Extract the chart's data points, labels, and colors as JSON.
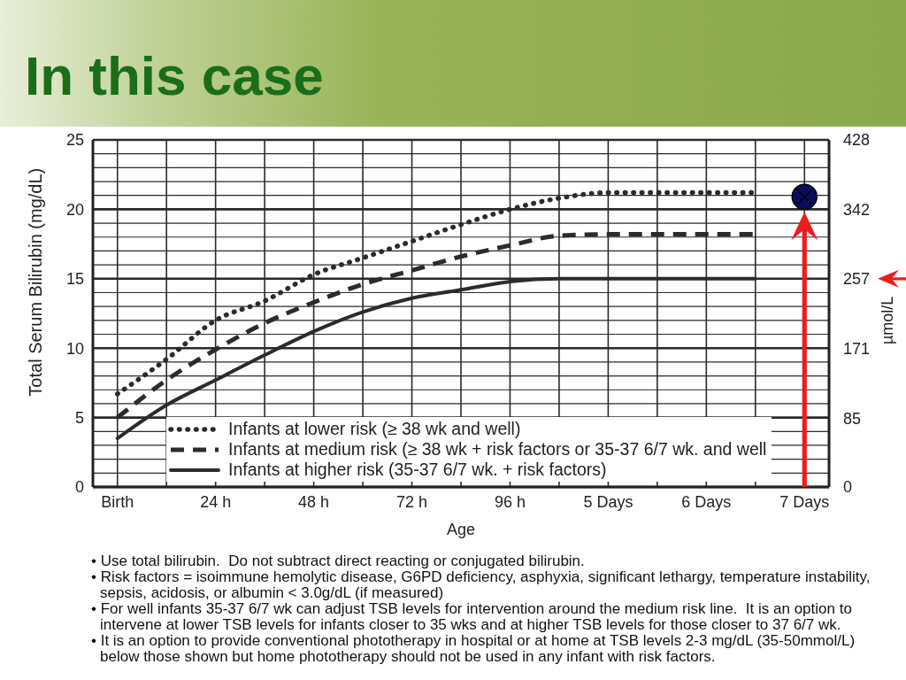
{
  "chart_data": {
    "type": "line",
    "title": "In this case",
    "xlabel": "Age",
    "ylabel": "Total Serum Bilirubin (mg/dL)",
    "y2label": "µmol/L",
    "categories": [
      "Birth",
      null,
      "24 h",
      null,
      "48 h",
      null,
      "72 h",
      null,
      "96 h",
      null,
      "5 Days",
      null,
      "6 Days",
      null,
      "7 Days"
    ],
    "ylim": [
      0,
      25
    ],
    "yticks": [
      0,
      {
        "value": 1,
        "label": null
      },
      {
        "value": 2,
        "label": null
      },
      {
        "value": 3,
        "label": null
      },
      {
        "value": 4,
        "label": null
      },
      5,
      {
        "value": 6,
        "label": null
      },
      {
        "value": 7,
        "label": null
      },
      {
        "value": 8,
        "label": null
      },
      {
        "value": 9,
        "label": null
      },
      10,
      {
        "value": 11,
        "label": null
      },
      {
        "value": 12,
        "label": null
      },
      {
        "value": 13,
        "label": null
      },
      {
        "value": 14,
        "label": null
      },
      15,
      {
        "value": 16,
        "label": null
      },
      {
        "value": 17,
        "label": null
      },
      {
        "value": 18,
        "label": null
      },
      {
        "value": 19,
        "label": null
      },
      20,
      {
        "value": 21,
        "label": null
      },
      {
        "value": 22,
        "label": null
      },
      {
        "value": 23,
        "label": null
      },
      {
        "value": 24,
        "label": null
      },
      25
    ],
    "y2lim": [
      0,
      428
    ],
    "y2ticks": [
      0,
      85,
      171,
      257,
      342,
      428
    ],
    "grid": true,
    "legend": "bottom left",
    "marker": "none",
    "series": [
      {
        "name": "Infants at lower risk (≥ 38 wk and well)",
        "color": "#2b2b2b",
        "line_style": "dotted",
        "values": [
          6.7,
          9.2,
          12.0,
          13.4,
          15.3,
          16.5,
          17.7,
          18.9,
          20.0,
          20.8,
          21.2,
          21.2,
          21.2,
          21.2,
          null
        ]
      },
      {
        "name": "Infants at medium risk (≥ 38 wk + risk factors or 35-37 6/7 wk. and well",
        "color": "#2b2b2b",
        "line_style": "dashed",
        "values": [
          5.0,
          7.7,
          9.9,
          11.8,
          13.3,
          14.6,
          15.6,
          16.6,
          17.4,
          18.1,
          18.2,
          18.2,
          18.2,
          18.2,
          null
        ]
      },
      {
        "name": "Infants at higher risk (35-37 6/7 wk. + risk factors)",
        "color": "#2b2b2b",
        "line_style": "solid",
        "values": [
          3.5,
          5.9,
          7.7,
          9.5,
          11.2,
          12.6,
          13.6,
          14.2,
          14.8,
          15.0,
          15.0,
          15.0,
          15.0,
          15.0,
          null
        ]
      },
      {
        "type": "scatter",
        "color": "#0c0c5e",
        "marker": "circle",
        "values": [
          null,
          null,
          null,
          null,
          null,
          null,
          null,
          null,
          null,
          null,
          null,
          null,
          null,
          null,
          20.9
        ]
      }
    ],
    "annotations": [
      "• Use total bilirubin.  Do not subtract direct reacting or conjugated bilirubin.",
      "• Risk factors = isoimmune hemolytic disease, G6PD deficiency, asphyxia, significant lethargy, temperature instability, sepsis, acidosis, or albumin < 3.0g/dL (if measured)",
      "• For well infants 35-37 6/7 wk can adjust TSB levels for intervention around the medium risk line.  It is an option to intervene at lower TSB levels for infants closer to 35 wks and at higher TSB levels for those closer to 37 6/7 wk.",
      "• It is an option to provide conventional phototherapy in hospital or at home at TSB levels 2-3 mg/dL (35-50mmol/L) below those shown but home phototherapy should not be used in any infant with risk factors."
    ]
  }
}
